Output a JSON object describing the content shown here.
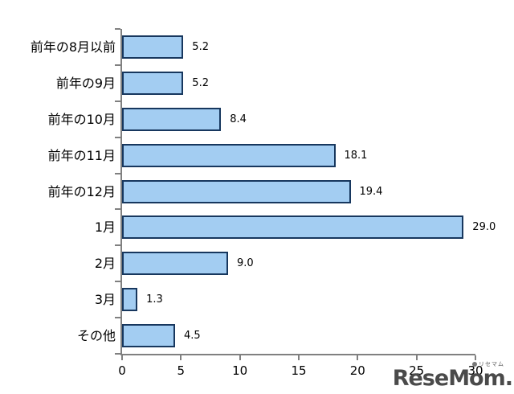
{
  "chart_data": {
    "type": "bar",
    "orientation": "horizontal",
    "title": "",
    "xlabel": "",
    "ylabel": "",
    "categories": [
      "前年の8月以前",
      "前年の9月",
      "前年の10月",
      "前年の11月",
      "前年の12月",
      "1月",
      "2月",
      "3月",
      "その他"
    ],
    "values": [
      5.2,
      5.2,
      8.4,
      18.1,
      19.4,
      29.0,
      9.0,
      1.3,
      4.5
    ],
    "value_labels": [
      "5.2",
      "5.2",
      "8.4",
      "18.1",
      "19.4",
      "29.0",
      "9.0",
      "1.3",
      "4.5"
    ],
    "x_ticks": [
      "0",
      "5",
      "10",
      "15",
      "20",
      "25",
      "30"
    ],
    "x_tick_values": [
      0,
      5,
      10,
      15,
      20,
      25,
      30
    ],
    "xlim": [
      0,
      30
    ],
    "grid": false,
    "legend": false,
    "colors": {
      "bar_fill": "#A3CDF2",
      "bar_border": "#17375E",
      "axis": "#808080",
      "label_text": "#000000"
    }
  },
  "watermark": {
    "text": "ReseMom.",
    "small_text": "リセマム",
    "color": "#4A4A4A"
  }
}
